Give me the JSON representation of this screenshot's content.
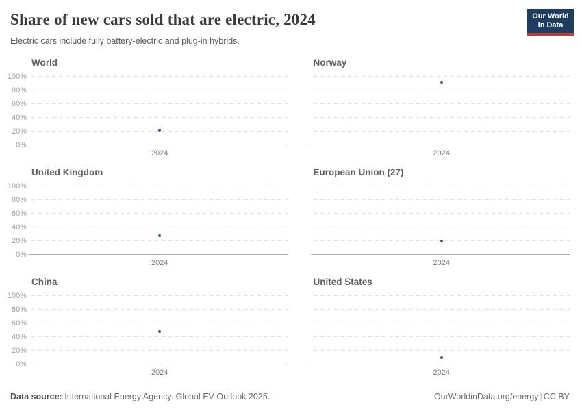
{
  "header": {
    "title": "Share of new cars sold that are electric, 2024",
    "subtitle": "Electric cars include fully battery-electric and plug-in hybrids.",
    "logo": {
      "line1": "Our World",
      "line2": "in Data"
    }
  },
  "chart_data": {
    "type": "scatter",
    "title": "Share of new cars sold that are electric, 2024",
    "layout": "small multiples, 2 columns x 3 rows, y-axis tick labels on left column only, dashed horizontal gridlines",
    "x": [
      2024
    ],
    "y_ticks": [
      0,
      20,
      40,
      60,
      80,
      100
    ],
    "y_tick_suffix": "%",
    "ylim": [
      0,
      100
    ],
    "grid": true,
    "series": [
      {
        "name": "World",
        "x": [
          2024
        ],
        "values": [
          22
        ]
      },
      {
        "name": "Norway",
        "x": [
          2024
        ],
        "values": [
          92
        ]
      },
      {
        "name": "United Kingdom",
        "x": [
          2024
        ],
        "values": [
          28
        ]
      },
      {
        "name": "European Union (27)",
        "x": [
          2024
        ],
        "values": [
          20
        ]
      },
      {
        "name": "China",
        "x": [
          2024
        ],
        "values": [
          48
        ]
      },
      {
        "name": "United States",
        "x": [
          2024
        ],
        "values": [
          10
        ]
      }
    ]
  },
  "footer": {
    "source_label": "Data source:",
    "source_text": "International Energy Agency. Global EV Outlook 2025.",
    "url": "OurWorldinData.org/energy",
    "separator": "|",
    "license": "CC BY"
  },
  "colors": {
    "point": "#44589c",
    "logo_bg": "#1d3d63",
    "logo_bar": "#c7392f",
    "gridline": "#dedede",
    "axis_line": "#adadad"
  }
}
